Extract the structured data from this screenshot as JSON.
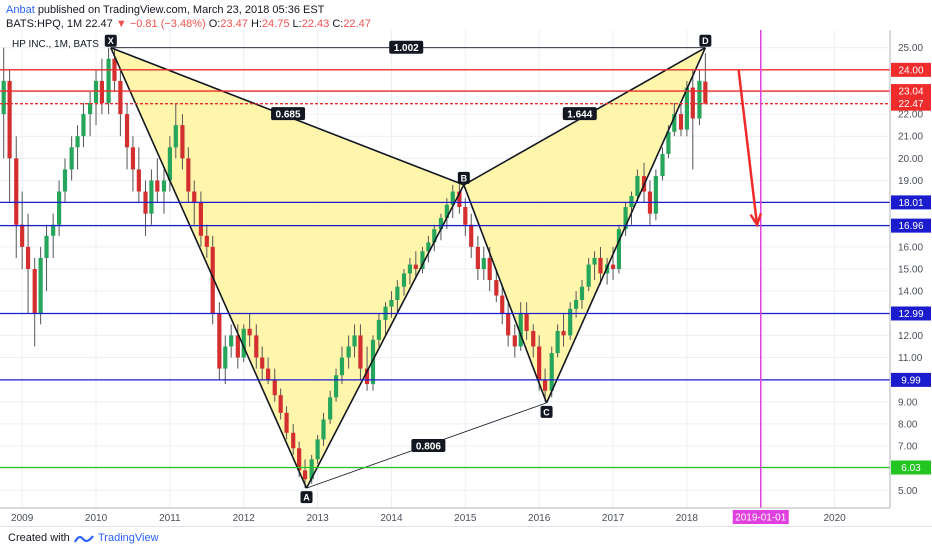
{
  "header": {
    "author": "Anbat",
    "published": "published on TradingView.com, March 23, 2018 05:36 EST",
    "symbol": "BATS:HPQ, 1M",
    "last": "22.47",
    "change": "−0.81 (−3.48%)",
    "o_label": "O:",
    "o": "23.47",
    "h_label": "H:",
    "h": "24.75",
    "l_label": "L:",
    "l": "22.43",
    "c_label": "C:",
    "c": "22.47"
  },
  "footer": {
    "created": "Created with",
    "brand": "TradingView"
  },
  "chart_data": {
    "type": "candlestick",
    "legend": "HP INC., 1M, BATS",
    "ylim": [
      4.2,
      25.8
    ],
    "y_ticks": [
      5,
      6,
      7,
      8,
      9,
      10,
      11,
      12,
      13,
      14,
      15,
      16,
      17,
      18,
      19,
      20,
      21,
      22,
      23,
      24,
      25
    ],
    "x_range": [
      2008.7,
      2020.75
    ],
    "x_ticks": [
      {
        "year": 2009,
        "label": "2009"
      },
      {
        "year": 2010,
        "label": "2010"
      },
      {
        "year": 2011,
        "label": "2011"
      },
      {
        "year": 2012,
        "label": "2012"
      },
      {
        "year": 2013,
        "label": "2013"
      },
      {
        "year": 2014,
        "label": "2014"
      },
      {
        "year": 2015,
        "label": "2015"
      },
      {
        "year": 2016,
        "label": "2016"
      },
      {
        "year": 2017,
        "label": "2017"
      },
      {
        "year": 2018,
        "label": "2018"
      },
      {
        "year": 2020,
        "label": "2020"
      }
    ],
    "horizontal_levels": [
      {
        "value": 24.0,
        "label": "24.00",
        "color": "#ef2b2b",
        "style": "solid"
      },
      {
        "value": 23.04,
        "label": "23.04",
        "color": "#ef2b2b",
        "style": "solid"
      },
      {
        "value": 22.47,
        "label": "22.47",
        "color": "#ef2b2b",
        "style": "dashed"
      },
      {
        "value": 18.01,
        "label": "18.01",
        "color": "#1c1ccf",
        "style": "solid"
      },
      {
        "value": 16.96,
        "label": "16.96",
        "color": "#1c1ccf",
        "style": "solid"
      },
      {
        "value": 12.99,
        "label": "12.99",
        "color": "#1c1ccf",
        "style": "solid"
      },
      {
        "value": 9.99,
        "label": "9.99",
        "color": "#1c1ccf",
        "style": "solid"
      },
      {
        "value": 6.03,
        "label": "6.03",
        "color": "#22c522",
        "style": "solid"
      }
    ],
    "vertical_marker": {
      "x": 2019.0,
      "label": "2019-01-01",
      "color": "#e040e0"
    },
    "pattern": {
      "points": [
        {
          "name": "X",
          "x": 2010.2,
          "y": 25.0
        },
        {
          "name": "A",
          "x": 2012.85,
          "y": 5.1
        },
        {
          "name": "B",
          "x": 2014.98,
          "y": 18.8
        },
        {
          "name": "C",
          "x": 2016.1,
          "y": 8.95
        },
        {
          "name": "D",
          "x": 2018.25,
          "y": 25.0
        }
      ],
      "ratios": [
        {
          "label": "1.002",
          "x": 2014.2,
          "y": 25.0
        },
        {
          "label": "0.685",
          "x": 2012.6,
          "y": 22.0
        },
        {
          "label": "1.644",
          "x": 2016.55,
          "y": 22.0
        },
        {
          "label": "0.806",
          "x": 2014.5,
          "y": 7.0
        }
      ],
      "fill": "#fff59d",
      "stroke": "#131722"
    },
    "arrow": {
      "x1": 2018.7,
      "y1": 24.0,
      "x2": 2018.95,
      "y2": 17.0,
      "color": "#ef2b2b"
    },
    "candles": [
      {
        "t": 2008.75,
        "o": 22.0,
        "h": 25.0,
        "l": 20.0,
        "c": 23.5
      },
      {
        "t": 2008.83,
        "o": 23.5,
        "h": 24.0,
        "l": 18.0,
        "c": 20.0
      },
      {
        "t": 2008.92,
        "o": 20.0,
        "h": 21.0,
        "l": 15.5,
        "c": 17.0
      },
      {
        "t": 2009.0,
        "o": 17.0,
        "h": 18.5,
        "l": 15.0,
        "c": 16.0
      },
      {
        "t": 2009.08,
        "o": 16.0,
        "h": 17.5,
        "l": 13.0,
        "c": 15.0
      },
      {
        "t": 2009.17,
        "o": 15.0,
        "h": 15.5,
        "l": 11.5,
        "c": 13.0
      },
      {
        "t": 2009.25,
        "o": 13.0,
        "h": 16.0,
        "l": 12.5,
        "c": 15.5
      },
      {
        "t": 2009.33,
        "o": 15.5,
        "h": 17.0,
        "l": 14.0,
        "c": 16.5
      },
      {
        "t": 2009.42,
        "o": 16.5,
        "h": 17.5,
        "l": 15.5,
        "c": 17.0
      },
      {
        "t": 2009.5,
        "o": 17.0,
        "h": 19.0,
        "l": 16.5,
        "c": 18.5
      },
      {
        "t": 2009.58,
        "o": 18.5,
        "h": 20.0,
        "l": 18.0,
        "c": 19.5
      },
      {
        "t": 2009.67,
        "o": 19.5,
        "h": 21.0,
        "l": 19.0,
        "c": 20.5
      },
      {
        "t": 2009.75,
        "o": 20.5,
        "h": 21.5,
        "l": 19.5,
        "c": 21.0
      },
      {
        "t": 2009.83,
        "o": 21.0,
        "h": 22.5,
        "l": 20.5,
        "c": 22.0
      },
      {
        "t": 2009.92,
        "o": 22.0,
        "h": 23.0,
        "l": 21.0,
        "c": 22.5
      },
      {
        "t": 2010.0,
        "o": 22.5,
        "h": 24.0,
        "l": 21.5,
        "c": 23.5
      },
      {
        "t": 2010.08,
        "o": 23.5,
        "h": 24.5,
        "l": 22.0,
        "c": 22.5
      },
      {
        "t": 2010.17,
        "o": 22.5,
        "h": 25.0,
        "l": 22.0,
        "c": 24.5
      },
      {
        "t": 2010.25,
        "o": 24.5,
        "h": 25.0,
        "l": 23.0,
        "c": 23.5
      },
      {
        "t": 2010.33,
        "o": 23.5,
        "h": 24.0,
        "l": 21.0,
        "c": 22.0
      },
      {
        "t": 2010.42,
        "o": 22.0,
        "h": 22.5,
        "l": 19.5,
        "c": 20.5
      },
      {
        "t": 2010.5,
        "o": 20.5,
        "h": 21.0,
        "l": 18.5,
        "c": 19.5
      },
      {
        "t": 2010.58,
        "o": 19.5,
        "h": 20.5,
        "l": 18.0,
        "c": 18.5
      },
      {
        "t": 2010.67,
        "o": 18.5,
        "h": 19.0,
        "l": 16.5,
        "c": 17.5
      },
      {
        "t": 2010.75,
        "o": 17.5,
        "h": 19.5,
        "l": 17.0,
        "c": 19.0
      },
      {
        "t": 2010.83,
        "o": 19.0,
        "h": 20.0,
        "l": 18.0,
        "c": 18.5
      },
      {
        "t": 2010.92,
        "o": 18.5,
        "h": 19.5,
        "l": 17.5,
        "c": 19.0
      },
      {
        "t": 2011.0,
        "o": 19.0,
        "h": 21.0,
        "l": 18.5,
        "c": 20.5
      },
      {
        "t": 2011.08,
        "o": 20.5,
        "h": 22.5,
        "l": 20.0,
        "c": 21.5
      },
      {
        "t": 2011.17,
        "o": 21.5,
        "h": 22.0,
        "l": 19.5,
        "c": 20.0
      },
      {
        "t": 2011.25,
        "o": 20.0,
        "h": 20.5,
        "l": 18.0,
        "c": 18.5
      },
      {
        "t": 2011.33,
        "o": 18.5,
        "h": 19.0,
        "l": 17.0,
        "c": 18.0
      },
      {
        "t": 2011.42,
        "o": 18.0,
        "h": 18.5,
        "l": 16.0,
        "c": 16.5
      },
      {
        "t": 2011.5,
        "o": 16.5,
        "h": 17.0,
        "l": 15.5,
        "c": 16.0
      },
      {
        "t": 2011.58,
        "o": 16.0,
        "h": 16.5,
        "l": 12.5,
        "c": 13.0
      },
      {
        "t": 2011.67,
        "o": 13.0,
        "h": 13.5,
        "l": 10.0,
        "c": 10.5
      },
      {
        "t": 2011.75,
        "o": 10.5,
        "h": 12.0,
        "l": 9.8,
        "c": 11.5
      },
      {
        "t": 2011.83,
        "o": 11.5,
        "h": 12.5,
        "l": 11.0,
        "c": 12.0
      },
      {
        "t": 2011.92,
        "o": 12.0,
        "h": 12.5,
        "l": 10.5,
        "c": 11.0
      },
      {
        "t": 2012.0,
        "o": 11.0,
        "h": 12.5,
        "l": 10.8,
        "c": 12.3
      },
      {
        "t": 2012.08,
        "o": 12.3,
        "h": 13.0,
        "l": 11.5,
        "c": 12.0
      },
      {
        "t": 2012.17,
        "o": 12.0,
        "h": 12.5,
        "l": 10.5,
        "c": 11.0
      },
      {
        "t": 2012.25,
        "o": 11.0,
        "h": 11.5,
        "l": 10.0,
        "c": 10.5
      },
      {
        "t": 2012.33,
        "o": 10.5,
        "h": 11.0,
        "l": 9.8,
        "c": 10.0
      },
      {
        "t": 2012.42,
        "o": 10.0,
        "h": 10.5,
        "l": 9.0,
        "c": 9.3
      },
      {
        "t": 2012.5,
        "o": 9.3,
        "h": 9.6,
        "l": 8.2,
        "c": 8.5
      },
      {
        "t": 2012.58,
        "o": 8.5,
        "h": 8.8,
        "l": 7.3,
        "c": 7.6
      },
      {
        "t": 2012.67,
        "o": 7.6,
        "h": 8.0,
        "l": 6.6,
        "c": 6.9
      },
      {
        "t": 2012.75,
        "o": 6.9,
        "h": 7.2,
        "l": 5.6,
        "c": 5.9
      },
      {
        "t": 2012.83,
        "o": 5.9,
        "h": 6.4,
        "l": 5.1,
        "c": 5.5
      },
      {
        "t": 2012.92,
        "o": 5.5,
        "h": 6.6,
        "l": 5.3,
        "c": 6.4
      },
      {
        "t": 2013.0,
        "o": 6.4,
        "h": 7.5,
        "l": 6.2,
        "c": 7.3
      },
      {
        "t": 2013.08,
        "o": 7.3,
        "h": 8.5,
        "l": 7.0,
        "c": 8.2
      },
      {
        "t": 2013.17,
        "o": 8.2,
        "h": 9.5,
        "l": 8.0,
        "c": 9.2
      },
      {
        "t": 2013.25,
        "o": 9.2,
        "h": 10.5,
        "l": 9.0,
        "c": 10.2
      },
      {
        "t": 2013.33,
        "o": 10.2,
        "h": 11.5,
        "l": 9.8,
        "c": 11.0
      },
      {
        "t": 2013.42,
        "o": 11.0,
        "h": 12.0,
        "l": 10.5,
        "c": 11.5
      },
      {
        "t": 2013.5,
        "o": 11.5,
        "h": 12.5,
        "l": 11.0,
        "c": 12.0
      },
      {
        "t": 2013.58,
        "o": 12.0,
        "h": 12.5,
        "l": 10.0,
        "c": 10.5
      },
      {
        "t": 2013.67,
        "o": 10.5,
        "h": 11.5,
        "l": 9.5,
        "c": 9.8
      },
      {
        "t": 2013.75,
        "o": 9.8,
        "h": 12.0,
        "l": 9.5,
        "c": 11.8
      },
      {
        "t": 2013.83,
        "o": 11.8,
        "h": 13.0,
        "l": 11.5,
        "c": 12.7
      },
      {
        "t": 2013.92,
        "o": 12.7,
        "h": 13.5,
        "l": 12.0,
        "c": 13.3
      },
      {
        "t": 2014.0,
        "o": 13.3,
        "h": 14.0,
        "l": 12.8,
        "c": 13.6
      },
      {
        "t": 2014.08,
        "o": 13.6,
        "h": 14.5,
        "l": 13.0,
        "c": 14.2
      },
      {
        "t": 2014.17,
        "o": 14.2,
        "h": 15.0,
        "l": 13.8,
        "c": 14.8
      },
      {
        "t": 2014.25,
        "o": 14.8,
        "h": 15.5,
        "l": 14.3,
        "c": 15.2
      },
      {
        "t": 2014.33,
        "o": 15.2,
        "h": 15.8,
        "l": 14.6,
        "c": 15.0
      },
      {
        "t": 2014.42,
        "o": 15.0,
        "h": 16.0,
        "l": 14.8,
        "c": 15.8
      },
      {
        "t": 2014.5,
        "o": 15.8,
        "h": 16.5,
        "l": 15.3,
        "c": 16.2
      },
      {
        "t": 2014.58,
        "o": 16.2,
        "h": 17.0,
        "l": 15.8,
        "c": 16.8
      },
      {
        "t": 2014.67,
        "o": 16.8,
        "h": 17.5,
        "l": 16.3,
        "c": 17.3
      },
      {
        "t": 2014.75,
        "o": 17.3,
        "h": 18.2,
        "l": 16.8,
        "c": 17.9
      },
      {
        "t": 2014.83,
        "o": 17.9,
        "h": 18.8,
        "l": 17.3,
        "c": 18.5
      },
      {
        "t": 2014.92,
        "o": 18.5,
        "h": 19.0,
        "l": 17.5,
        "c": 17.8
      },
      {
        "t": 2015.0,
        "o": 17.8,
        "h": 18.2,
        "l": 16.5,
        "c": 17.0
      },
      {
        "t": 2015.08,
        "o": 17.0,
        "h": 17.5,
        "l": 15.5,
        "c": 16.0
      },
      {
        "t": 2015.17,
        "o": 16.0,
        "h": 16.5,
        "l": 14.5,
        "c": 15.0
      },
      {
        "t": 2015.25,
        "o": 15.0,
        "h": 16.0,
        "l": 14.5,
        "c": 15.5
      },
      {
        "t": 2015.33,
        "o": 15.5,
        "h": 16.0,
        "l": 14.0,
        "c": 14.5
      },
      {
        "t": 2015.42,
        "o": 14.5,
        "h": 15.0,
        "l": 13.5,
        "c": 13.8
      },
      {
        "t": 2015.5,
        "o": 13.8,
        "h": 14.3,
        "l": 12.5,
        "c": 13.0
      },
      {
        "t": 2015.58,
        "o": 13.0,
        "h": 13.5,
        "l": 11.5,
        "c": 12.0
      },
      {
        "t": 2015.67,
        "o": 12.0,
        "h": 12.5,
        "l": 11.0,
        "c": 11.5
      },
      {
        "t": 2015.75,
        "o": 11.5,
        "h": 13.5,
        "l": 11.3,
        "c": 13.0
      },
      {
        "t": 2015.83,
        "o": 13.0,
        "h": 13.5,
        "l": 11.8,
        "c": 12.2
      },
      {
        "t": 2015.92,
        "o": 12.2,
        "h": 12.5,
        "l": 11.0,
        "c": 11.5
      },
      {
        "t": 2016.0,
        "o": 11.5,
        "h": 12.0,
        "l": 9.5,
        "c": 10.0
      },
      {
        "t": 2016.08,
        "o": 10.0,
        "h": 10.5,
        "l": 9.0,
        "c": 9.5
      },
      {
        "t": 2016.17,
        "o": 9.5,
        "h": 11.5,
        "l": 9.2,
        "c": 11.2
      },
      {
        "t": 2016.25,
        "o": 11.2,
        "h": 12.5,
        "l": 11.0,
        "c": 12.2
      },
      {
        "t": 2016.33,
        "o": 12.2,
        "h": 13.0,
        "l": 11.5,
        "c": 12.0
      },
      {
        "t": 2016.42,
        "o": 12.0,
        "h": 13.5,
        "l": 11.8,
        "c": 13.2
      },
      {
        "t": 2016.5,
        "o": 13.2,
        "h": 14.0,
        "l": 12.8,
        "c": 13.6
      },
      {
        "t": 2016.58,
        "o": 13.6,
        "h": 14.5,
        "l": 13.2,
        "c": 14.2
      },
      {
        "t": 2016.67,
        "o": 14.2,
        "h": 15.5,
        "l": 14.0,
        "c": 15.2
      },
      {
        "t": 2016.75,
        "o": 15.2,
        "h": 15.8,
        "l": 14.5,
        "c": 15.5
      },
      {
        "t": 2016.83,
        "o": 15.5,
        "h": 16.0,
        "l": 14.3,
        "c": 14.8
      },
      {
        "t": 2016.92,
        "o": 14.8,
        "h": 15.5,
        "l": 14.3,
        "c": 15.2
      },
      {
        "t": 2017.0,
        "o": 15.2,
        "h": 16.0,
        "l": 14.5,
        "c": 15.0
      },
      {
        "t": 2017.08,
        "o": 15.0,
        "h": 17.0,
        "l": 14.8,
        "c": 16.8
      },
      {
        "t": 2017.17,
        "o": 16.8,
        "h": 18.0,
        "l": 16.5,
        "c": 17.8
      },
      {
        "t": 2017.25,
        "o": 17.8,
        "h": 18.5,
        "l": 17.0,
        "c": 18.3
      },
      {
        "t": 2017.33,
        "o": 18.3,
        "h": 19.5,
        "l": 18.0,
        "c": 19.2
      },
      {
        "t": 2017.42,
        "o": 19.2,
        "h": 19.8,
        "l": 18.0,
        "c": 18.5
      },
      {
        "t": 2017.5,
        "o": 18.5,
        "h": 19.0,
        "l": 17.0,
        "c": 17.5
      },
      {
        "t": 2017.58,
        "o": 17.5,
        "h": 19.5,
        "l": 17.2,
        "c": 19.2
      },
      {
        "t": 2017.67,
        "o": 19.2,
        "h": 20.5,
        "l": 19.0,
        "c": 20.2
      },
      {
        "t": 2017.75,
        "o": 20.2,
        "h": 21.5,
        "l": 20.0,
        "c": 21.2
      },
      {
        "t": 2017.83,
        "o": 21.2,
        "h": 22.5,
        "l": 21.0,
        "c": 22.0
      },
      {
        "t": 2017.92,
        "o": 22.0,
        "h": 22.5,
        "l": 21.0,
        "c": 21.3
      },
      {
        "t": 2018.0,
        "o": 21.3,
        "h": 23.5,
        "l": 21.0,
        "c": 23.2
      },
      {
        "t": 2018.08,
        "o": 23.2,
        "h": 24.0,
        "l": 19.5,
        "c": 21.8
      },
      {
        "t": 2018.17,
        "o": 21.8,
        "h": 24.0,
        "l": 21.5,
        "c": 23.5
      },
      {
        "t": 2018.25,
        "o": 23.47,
        "h": 24.75,
        "l": 22.43,
        "c": 22.47
      }
    ]
  }
}
